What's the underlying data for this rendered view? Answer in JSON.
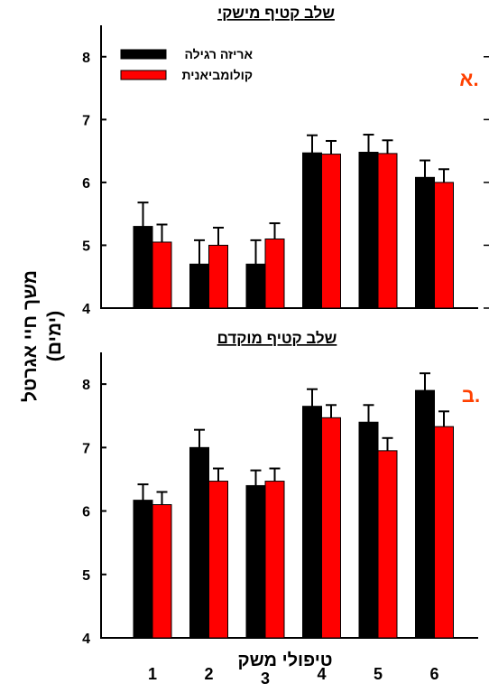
{
  "colors": {
    "series_1": "#000000",
    "series_2": "#ff0000",
    "panel_letter": "#ff4000",
    "axis": "#000000"
  },
  "shared": {
    "ylabel_line1": "משך חיי אגרטל",
    "ylabel_line2": "(ימים)",
    "xlabel": "טיפולי משק"
  },
  "chart_data": [
    {
      "type": "bar",
      "title": "שלב קטיף מישקי",
      "panel_letter": "א.",
      "categories": [
        "1",
        "2",
        "3",
        "4",
        "5",
        "6"
      ],
      "ylim": [
        4,
        8.5
      ],
      "yticks": [
        "4",
        "5",
        "6",
        "7",
        "8"
      ],
      "legend_position": "top-left",
      "series": [
        {
          "name": "אריזה רגילה",
          "values": [
            5.3,
            4.7,
            4.7,
            6.47,
            6.48,
            6.08
          ],
          "errors": [
            0.38,
            0.38,
            0.38,
            0.28,
            0.28,
            0.27
          ]
        },
        {
          "name": "קולומביאנית",
          "values": [
            5.05,
            5.0,
            5.1,
            6.45,
            6.46,
            6.0
          ],
          "errors": [
            0.28,
            0.28,
            0.25,
            0.21,
            0.21,
            0.21
          ]
        }
      ]
    },
    {
      "type": "bar",
      "title": "שלב קטיף מוקדם",
      "panel_letter": "ב.",
      "categories": [
        "1",
        "2",
        "3",
        "4",
        "5",
        "6"
      ],
      "ylim": [
        4,
        8.5
      ],
      "yticks": [
        "4",
        "5",
        "6",
        "7",
        "8"
      ],
      "series": [
        {
          "name": "אריזה רגילה",
          "values": [
            6.17,
            7.0,
            6.4,
            7.65,
            7.4,
            7.9
          ],
          "errors": [
            0.25,
            0.28,
            0.24,
            0.27,
            0.27,
            0.27
          ]
        },
        {
          "name": "קולומביאנית",
          "values": [
            6.1,
            6.47,
            6.47,
            7.47,
            6.95,
            7.33
          ],
          "errors": [
            0.2,
            0.2,
            0.2,
            0.2,
            0.2,
            0.24
          ]
        }
      ]
    }
  ]
}
